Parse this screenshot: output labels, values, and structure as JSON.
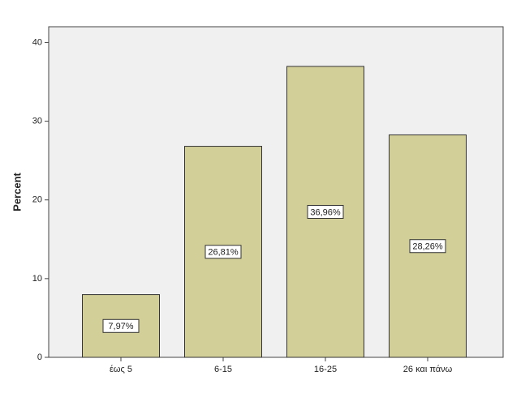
{
  "chart_data": {
    "type": "bar",
    "y_label": "Percent",
    "categories": [
      "έως 5",
      "6-15",
      "16-25",
      "26 και πάνω"
    ],
    "values": [
      7.97,
      26.81,
      36.96,
      28.26
    ],
    "value_labels": [
      "7,97%",
      "26,81%",
      "36,96%",
      "28,26%"
    ],
    "color": "#d3cf98",
    "ylim": [
      0,
      42
    ],
    "yticks": [
      0,
      10,
      20,
      30,
      40
    ]
  }
}
